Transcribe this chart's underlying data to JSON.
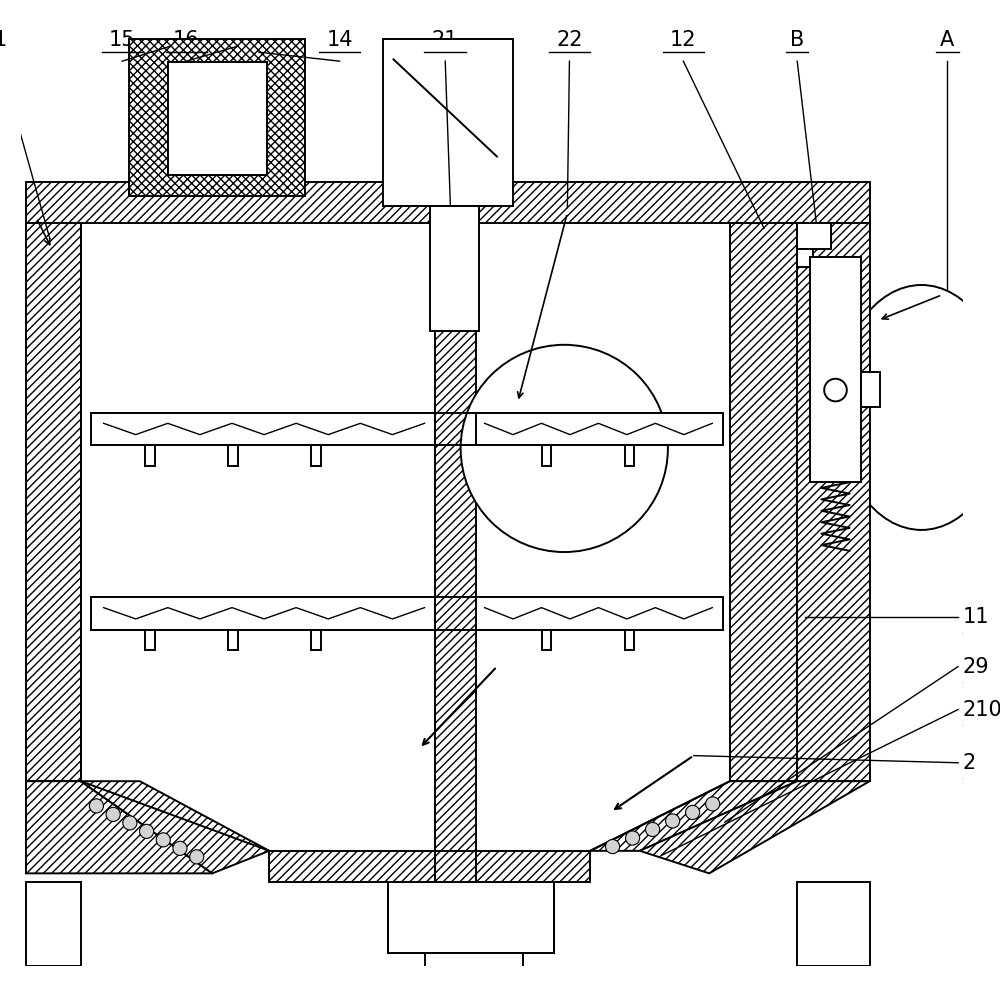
{
  "bg_color": "#ffffff",
  "line_color": "#000000",
  "figsize": [
    10.0,
    9.89
  ],
  "dpi": 100,
  "top_labels": [
    "1",
    "15",
    "16",
    "14",
    "21",
    "22",
    "12",
    "B",
    "A"
  ],
  "right_labels": [
    "11",
    "29",
    "210",
    "2"
  ]
}
